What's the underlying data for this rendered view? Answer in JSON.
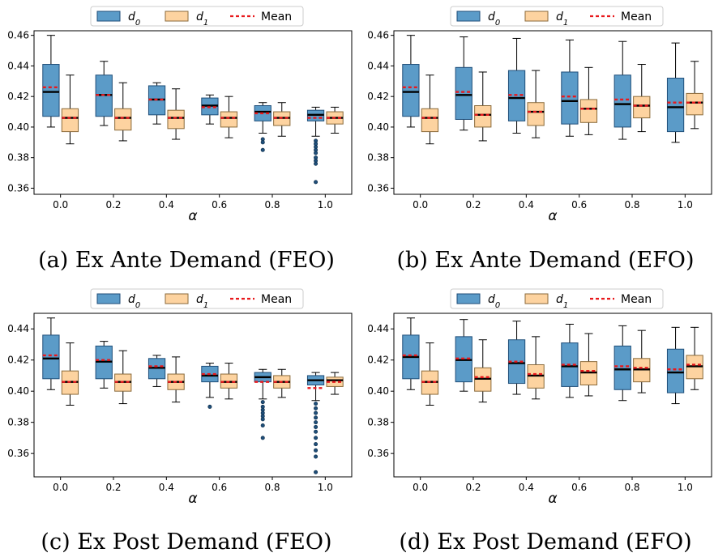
{
  "legend": {
    "d0": "d",
    "d0_sub": "0",
    "d1": "d",
    "d1_sub": "1",
    "mean": "Mean"
  },
  "colors": {
    "d0_fill": "#5b9bc8",
    "d0_edge": "#1f4e79",
    "d1_fill": "#fdd3a0",
    "d1_edge": "#8a6a3a",
    "median": "#000000",
    "mean": "#e8191c",
    "flier": "#1f4e79"
  },
  "chart_data": [
    {
      "type": "box",
      "caption": "(a) Ex Ante Demand (FEO)",
      "xlabel": "α",
      "categories": [
        "0.0",
        "0.2",
        "0.4",
        "0.6",
        "0.8",
        "1.0"
      ],
      "ylim": [
        0.356,
        0.463
      ],
      "yticks": [
        "0.36",
        "0.38",
        "0.40",
        "0.42",
        "0.44",
        "0.46"
      ],
      "series": [
        {
          "name": "d0",
          "boxes": [
            {
              "wl": 0.4,
              "q1": 0.407,
              "median": 0.423,
              "mean": 0.426,
              "q3": 0.441,
              "wh": 0.46,
              "fliers": []
            },
            {
              "wl": 0.401,
              "q1": 0.407,
              "median": 0.421,
              "mean": 0.421,
              "q3": 0.434,
              "wh": 0.443,
              "fliers": []
            },
            {
              "wl": 0.402,
              "q1": 0.408,
              "median": 0.418,
              "mean": 0.418,
              "q3": 0.427,
              "wh": 0.429,
              "fliers": []
            },
            {
              "wl": 0.402,
              "q1": 0.408,
              "median": 0.414,
              "mean": 0.413,
              "q3": 0.419,
              "wh": 0.421,
              "fliers": []
            },
            {
              "wl": 0.396,
              "q1": 0.404,
              "median": 0.41,
              "mean": 0.409,
              "q3": 0.414,
              "wh": 0.416,
              "fliers": [
                0.392,
                0.39,
                0.385
              ]
            },
            {
              "wl": 0.394,
              "q1": 0.404,
              "median": 0.408,
              "mean": 0.406,
              "q3": 0.411,
              "wh": 0.413,
              "fliers": [
                0.391,
                0.389,
                0.387,
                0.385,
                0.383,
                0.38,
                0.378,
                0.376,
                0.364
              ]
            }
          ]
        },
        {
          "name": "d1",
          "boxes": [
            {
              "wl": 0.389,
              "q1": 0.397,
              "median": 0.406,
              "mean": 0.406,
              "q3": 0.412,
              "wh": 0.434,
              "fliers": []
            },
            {
              "wl": 0.391,
              "q1": 0.398,
              "median": 0.406,
              "mean": 0.406,
              "q3": 0.412,
              "wh": 0.429,
              "fliers": []
            },
            {
              "wl": 0.392,
              "q1": 0.399,
              "median": 0.406,
              "mean": 0.406,
              "q3": 0.411,
              "wh": 0.425,
              "fliers": []
            },
            {
              "wl": 0.393,
              "q1": 0.4,
              "median": 0.406,
              "mean": 0.406,
              "q3": 0.41,
              "wh": 0.42,
              "fliers": []
            },
            {
              "wl": 0.394,
              "q1": 0.401,
              "median": 0.406,
              "mean": 0.406,
              "q3": 0.41,
              "wh": 0.416,
              "fliers": []
            },
            {
              "wl": 0.396,
              "q1": 0.402,
              "median": 0.406,
              "mean": 0.406,
              "q3": 0.41,
              "wh": 0.413,
              "fliers": []
            }
          ]
        }
      ]
    },
    {
      "type": "box",
      "caption": "(b) Ex Ante Demand (EFO)",
      "xlabel": "α",
      "categories": [
        "0.0",
        "0.2",
        "0.4",
        "0.6",
        "0.8",
        "1.0"
      ],
      "ylim": [
        0.356,
        0.463
      ],
      "yticks": [
        "0.36",
        "0.38",
        "0.40",
        "0.42",
        "0.44",
        "0.46"
      ],
      "series": [
        {
          "name": "d0",
          "boxes": [
            {
              "wl": 0.4,
              "q1": 0.407,
              "median": 0.423,
              "mean": 0.426,
              "q3": 0.441,
              "wh": 0.46,
              "fliers": []
            },
            {
              "wl": 0.398,
              "q1": 0.405,
              "median": 0.421,
              "mean": 0.423,
              "q3": 0.439,
              "wh": 0.459,
              "fliers": []
            },
            {
              "wl": 0.396,
              "q1": 0.404,
              "median": 0.419,
              "mean": 0.421,
              "q3": 0.437,
              "wh": 0.458,
              "fliers": []
            },
            {
              "wl": 0.394,
              "q1": 0.402,
              "median": 0.417,
              "mean": 0.42,
              "q3": 0.436,
              "wh": 0.457,
              "fliers": []
            },
            {
              "wl": 0.392,
              "q1": 0.4,
              "median": 0.415,
              "mean": 0.418,
              "q3": 0.434,
              "wh": 0.456,
              "fliers": []
            },
            {
              "wl": 0.39,
              "q1": 0.397,
              "median": 0.413,
              "mean": 0.416,
              "q3": 0.432,
              "wh": 0.455,
              "fliers": []
            }
          ]
        },
        {
          "name": "d1",
          "boxes": [
            {
              "wl": 0.389,
              "q1": 0.397,
              "median": 0.406,
              "mean": 0.406,
              "q3": 0.412,
              "wh": 0.434,
              "fliers": []
            },
            {
              "wl": 0.391,
              "q1": 0.4,
              "median": 0.408,
              "mean": 0.408,
              "q3": 0.414,
              "wh": 0.436,
              "fliers": []
            },
            {
              "wl": 0.393,
              "q1": 0.401,
              "median": 0.41,
              "mean": 0.41,
              "q3": 0.416,
              "wh": 0.437,
              "fliers": []
            },
            {
              "wl": 0.395,
              "q1": 0.403,
              "median": 0.412,
              "mean": 0.412,
              "q3": 0.418,
              "wh": 0.439,
              "fliers": []
            },
            {
              "wl": 0.397,
              "q1": 0.406,
              "median": 0.414,
              "mean": 0.414,
              "q3": 0.42,
              "wh": 0.441,
              "fliers": []
            },
            {
              "wl": 0.399,
              "q1": 0.408,
              "median": 0.416,
              "mean": 0.416,
              "q3": 0.422,
              "wh": 0.443,
              "fliers": []
            }
          ]
        }
      ]
    },
    {
      "type": "box",
      "caption": "(c) Ex Post Demand (FEO)",
      "xlabel": "α",
      "categories": [
        "0.0",
        "0.2",
        "0.4",
        "0.6",
        "0.8",
        "1.0"
      ],
      "ylim": [
        0.345,
        0.45
      ],
      "yticks": [
        "0.36",
        "0.38",
        "0.40",
        "0.42",
        "0.44"
      ],
      "series": [
        {
          "name": "d0",
          "boxes": [
            {
              "wl": 0.401,
              "q1": 0.408,
              "median": 0.421,
              "mean": 0.423,
              "q3": 0.436,
              "wh": 0.447,
              "fliers": []
            },
            {
              "wl": 0.402,
              "q1": 0.408,
              "median": 0.419,
              "mean": 0.42,
              "q3": 0.429,
              "wh": 0.432,
              "fliers": []
            },
            {
              "wl": 0.403,
              "q1": 0.408,
              "median": 0.415,
              "mean": 0.416,
              "q3": 0.421,
              "wh": 0.423,
              "fliers": []
            },
            {
              "wl": 0.396,
              "q1": 0.406,
              "median": 0.41,
              "mean": 0.411,
              "q3": 0.416,
              "wh": 0.418,
              "fliers": [
                0.39
              ]
            },
            {
              "wl": 0.395,
              "q1": 0.406,
              "median": 0.409,
              "mean": 0.406,
              "q3": 0.412,
              "wh": 0.414,
              "fliers": [
                0.393,
                0.39,
                0.388,
                0.386,
                0.384,
                0.382,
                0.378,
                0.37
              ]
            },
            {
              "wl": 0.394,
              "q1": 0.404,
              "median": 0.407,
              "mean": 0.402,
              "q3": 0.41,
              "wh": 0.412,
              "fliers": [
                0.392,
                0.389,
                0.386,
                0.383,
                0.38,
                0.377,
                0.374,
                0.37,
                0.366,
                0.362,
                0.358,
                0.348
              ]
            }
          ]
        },
        {
          "name": "d1",
          "boxes": [
            {
              "wl": 0.391,
              "q1": 0.398,
              "median": 0.406,
              "mean": 0.406,
              "q3": 0.413,
              "wh": 0.431,
              "fliers": []
            },
            {
              "wl": 0.392,
              "q1": 0.4,
              "median": 0.406,
              "mean": 0.406,
              "q3": 0.411,
              "wh": 0.426,
              "fliers": []
            },
            {
              "wl": 0.393,
              "q1": 0.401,
              "median": 0.406,
              "mean": 0.406,
              "q3": 0.411,
              "wh": 0.422,
              "fliers": []
            },
            {
              "wl": 0.395,
              "q1": 0.402,
              "median": 0.406,
              "mean": 0.406,
              "q3": 0.411,
              "wh": 0.418,
              "fliers": []
            },
            {
              "wl": 0.396,
              "q1": 0.402,
              "median": 0.406,
              "mean": 0.406,
              "q3": 0.41,
              "wh": 0.414,
              "fliers": []
            },
            {
              "wl": 0.398,
              "q1": 0.403,
              "median": 0.407,
              "mean": 0.406,
              "q3": 0.409,
              "wh": 0.412,
              "fliers": []
            }
          ]
        }
      ]
    },
    {
      "type": "box",
      "caption": "(d) Ex Post Demand (EFO)",
      "xlabel": "α",
      "categories": [
        "0.0",
        "0.2",
        "0.4",
        "0.6",
        "0.8",
        "1.0"
      ],
      "ylim": [
        0.345,
        0.45
      ],
      "yticks": [
        "0.36",
        "0.38",
        "0.40",
        "0.42",
        "0.44"
      ],
      "series": [
        {
          "name": "d0",
          "boxes": [
            {
              "wl": 0.401,
              "q1": 0.408,
              "median": 0.422,
              "mean": 0.423,
              "q3": 0.436,
              "wh": 0.447,
              "fliers": []
            },
            {
              "wl": 0.4,
              "q1": 0.406,
              "median": 0.42,
              "mean": 0.421,
              "q3": 0.435,
              "wh": 0.446,
              "fliers": []
            },
            {
              "wl": 0.398,
              "q1": 0.405,
              "median": 0.418,
              "mean": 0.419,
              "q3": 0.433,
              "wh": 0.445,
              "fliers": []
            },
            {
              "wl": 0.396,
              "q1": 0.403,
              "median": 0.416,
              "mean": 0.417,
              "q3": 0.431,
              "wh": 0.443,
              "fliers": []
            },
            {
              "wl": 0.394,
              "q1": 0.401,
              "median": 0.414,
              "mean": 0.416,
              "q3": 0.429,
              "wh": 0.442,
              "fliers": []
            },
            {
              "wl": 0.392,
              "q1": 0.399,
              "median": 0.412,
              "mean": 0.414,
              "q3": 0.427,
              "wh": 0.441,
              "fliers": []
            }
          ]
        },
        {
          "name": "d1",
          "boxes": [
            {
              "wl": 0.391,
              "q1": 0.398,
              "median": 0.406,
              "mean": 0.406,
              "q3": 0.413,
              "wh": 0.431,
              "fliers": []
            },
            {
              "wl": 0.393,
              "q1": 0.4,
              "median": 0.408,
              "mean": 0.409,
              "q3": 0.415,
              "wh": 0.433,
              "fliers": []
            },
            {
              "wl": 0.395,
              "q1": 0.402,
              "median": 0.41,
              "mean": 0.411,
              "q3": 0.417,
              "wh": 0.435,
              "fliers": []
            },
            {
              "wl": 0.397,
              "q1": 0.404,
              "median": 0.412,
              "mean": 0.413,
              "q3": 0.419,
              "wh": 0.437,
              "fliers": []
            },
            {
              "wl": 0.399,
              "q1": 0.406,
              "median": 0.414,
              "mean": 0.415,
              "q3": 0.421,
              "wh": 0.439,
              "fliers": []
            },
            {
              "wl": 0.401,
              "q1": 0.408,
              "median": 0.416,
              "mean": 0.417,
              "q3": 0.423,
              "wh": 0.441,
              "fliers": []
            }
          ]
        }
      ]
    }
  ]
}
